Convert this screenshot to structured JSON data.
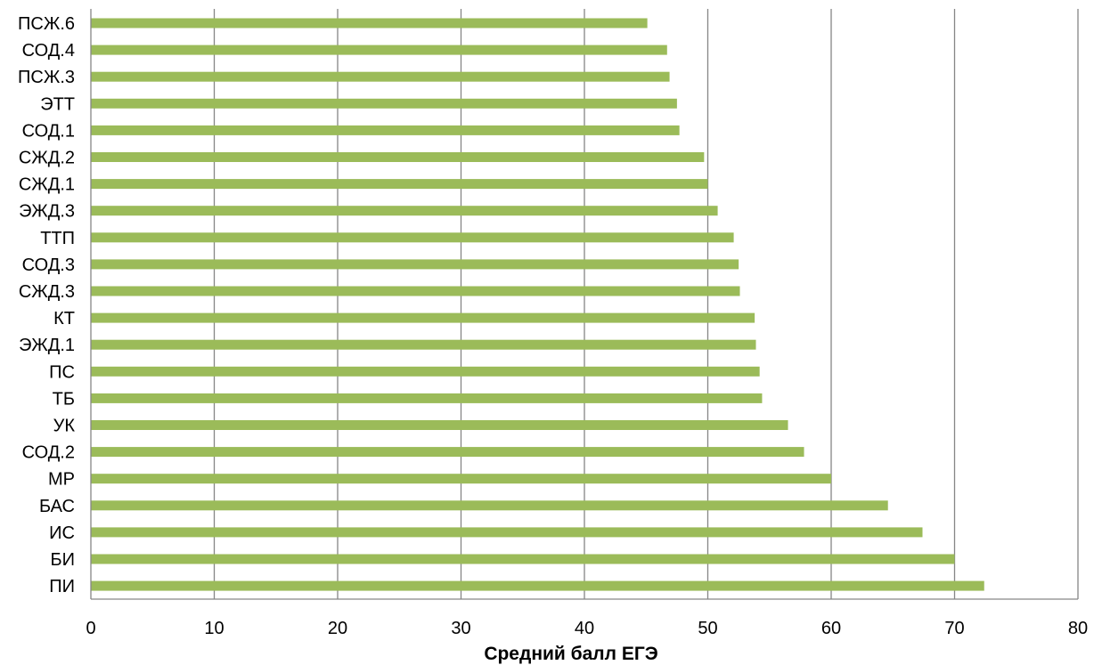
{
  "chart_data": {
    "type": "bar",
    "orientation": "horizontal",
    "title": "",
    "xlabel": "Средний балл ЕГЭ",
    "ylabel": "",
    "xlim": [
      0,
      80
    ],
    "x_ticks": [
      0,
      10,
      20,
      30,
      40,
      50,
      60,
      70,
      80
    ],
    "grid": "vertical-major",
    "legend": "none",
    "bar_color": "#9bbb59",
    "grid_color": "#868686",
    "categories": [
      "ПСЖ.6",
      "СОД.4",
      "ПСЖ.3",
      "ЭТТ",
      "СОД.1",
      "СЖД.2",
      "СЖД.1",
      "ЭЖД.3",
      "ТТП",
      "СОД.3",
      "СЖД.3",
      "КТ",
      "ЭЖД.1",
      "ПС",
      "ТБ",
      "УК",
      "СОД.2",
      "МР",
      "БАС",
      "ИС",
      "БИ",
      "ПИ"
    ],
    "values": [
      45.1,
      46.7,
      46.9,
      47.5,
      47.7,
      49.7,
      50.0,
      50.8,
      52.1,
      52.5,
      52.6,
      53.8,
      53.9,
      54.2,
      54.4,
      56.5,
      57.8,
      60.0,
      64.6,
      67.4,
      70.0,
      72.4
    ]
  }
}
